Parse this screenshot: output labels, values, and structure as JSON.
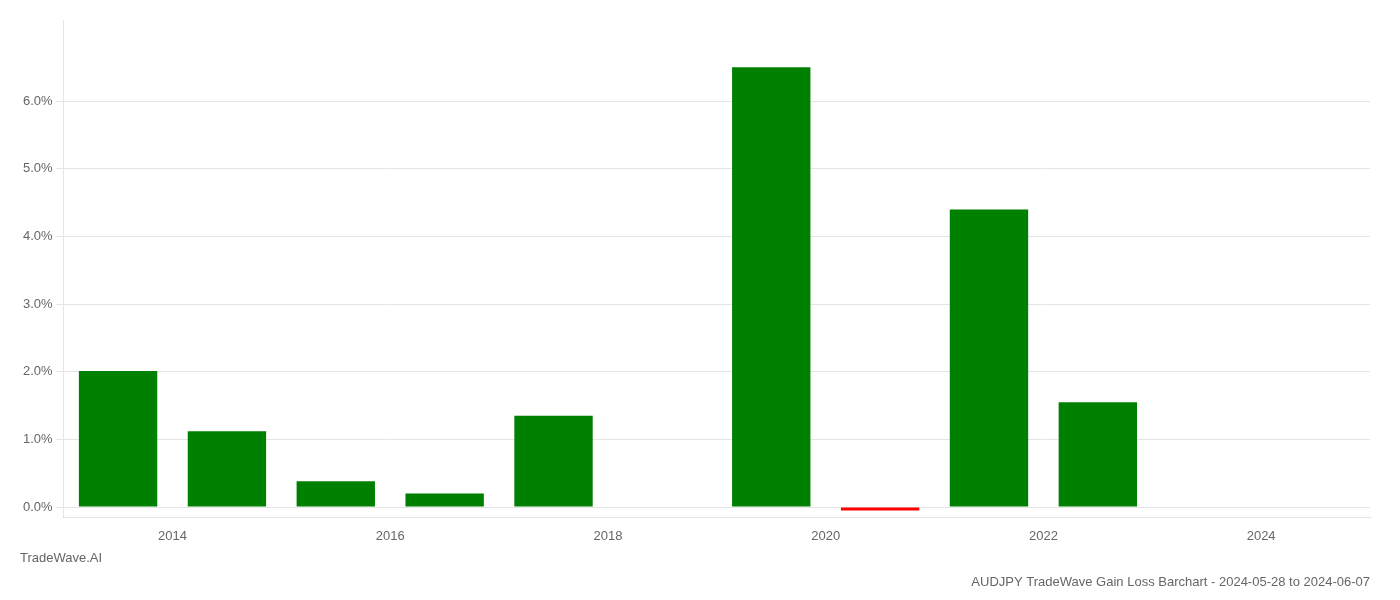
{
  "chart_data": {
    "type": "bar",
    "title": "AUDJPY TradeWave Gain Loss Barchart - 2024-05-28 to 2024-06-07",
    "annotations": [
      "TradeWave.AI"
    ],
    "x": [
      2013.5,
      2014.5,
      2015.5,
      2016.5,
      2017.5,
      2018.5,
      2019.5,
      2020.5,
      2021.5,
      2022.5
    ],
    "values": [
      0.0201,
      0.0112,
      0.0038,
      0.002,
      0.0135,
      0.0,
      0.065,
      -0.0005,
      0.044,
      0.0155
    ],
    "colors": [
      "#008000",
      "#008000",
      "#008000",
      "#008000",
      "#008000",
      "#008000",
      "#008000",
      "#ff0000",
      "#008000",
      "#008000"
    ],
    "xlim": [
      2013.0,
      2025.0
    ],
    "xticks": [
      2014,
      2016,
      2018,
      2020,
      2022,
      2024
    ],
    "ylim": [
      -0.0015,
      0.072
    ],
    "yticks": [
      {
        "value": 0.0,
        "label": "0.0%"
      },
      {
        "value": 0.01,
        "label": "1.0%"
      },
      {
        "value": 0.02,
        "label": "2.0%"
      },
      {
        "value": 0.03,
        "label": "3.0%"
      },
      {
        "value": 0.04,
        "label": "4.0%"
      },
      {
        "value": 0.05,
        "label": "5.0%"
      },
      {
        "value": 0.06,
        "label": "6.0%"
      }
    ],
    "grid": true
  }
}
